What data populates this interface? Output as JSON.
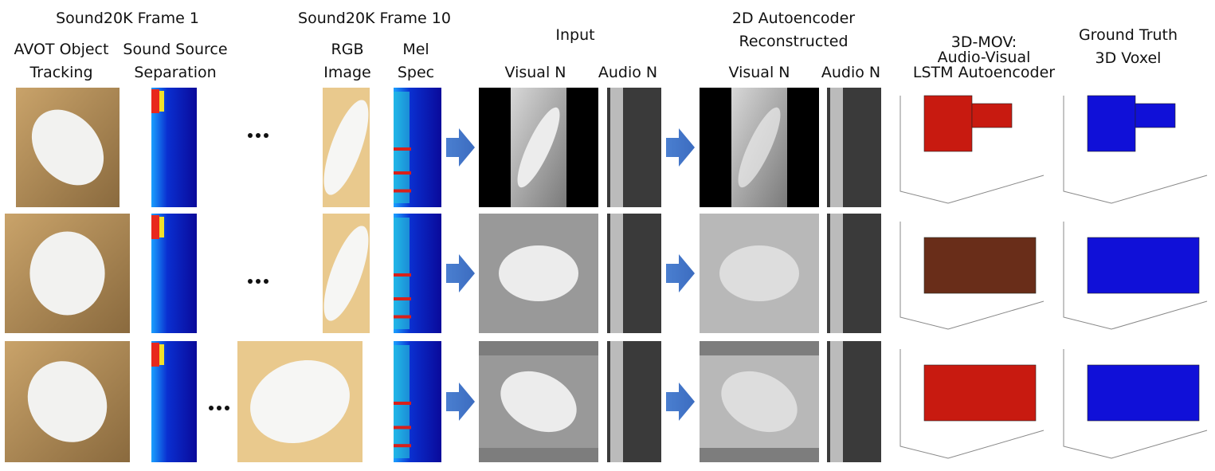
{
  "header": {
    "frame1": "Sound20K Frame 1",
    "frame10": "Sound20K Frame 10",
    "input": "Input",
    "autoencoder": [
      "2D Autoencoder",
      "Reconstructed"
    ],
    "avot": [
      "AVOT Object",
      "Tracking"
    ],
    "separation": [
      "Sound Source",
      "Separation"
    ],
    "rgb": [
      "RGB",
      "Image"
    ],
    "mel": [
      "Mel",
      "Spec"
    ],
    "input_visual": "Visual N",
    "input_audio": "Audio N",
    "recon_visual": "Visual N",
    "recon_audio": "Audio N",
    "model": [
      "3D-MOV:",
      "Audio-Visual",
      "LSTM Autoencoder"
    ],
    "truth": [
      "Ground Truth",
      "3D Voxel"
    ]
  }
}
